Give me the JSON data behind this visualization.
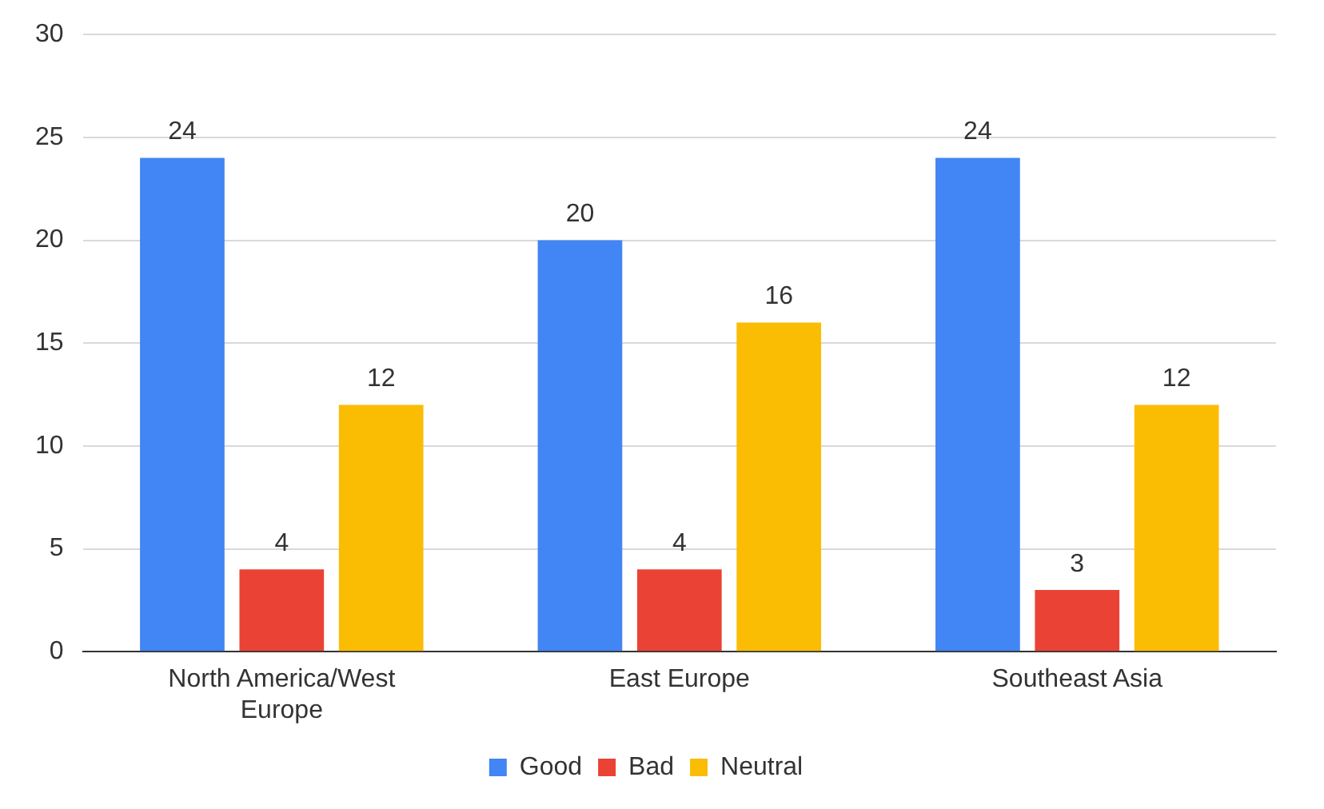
{
  "chart_data": {
    "type": "bar",
    "categories": [
      "North America/West Europe",
      "East Europe",
      "Southeast Asia"
    ],
    "series": [
      {
        "name": "Good",
        "color": "#4285f4",
        "values": [
          24,
          20,
          24
        ]
      },
      {
        "name": "Bad",
        "color": "#ea4335",
        "values": [
          4,
          4,
          3
        ]
      },
      {
        "name": "Neutral",
        "color": "#fbbc04",
        "values": [
          12,
          16,
          12
        ]
      }
    ],
    "ylim": [
      0,
      30
    ],
    "yticks": [
      0,
      5,
      10,
      15,
      20,
      25,
      30
    ],
    "grid": "y",
    "legend": "bottom",
    "data_labels": true
  }
}
